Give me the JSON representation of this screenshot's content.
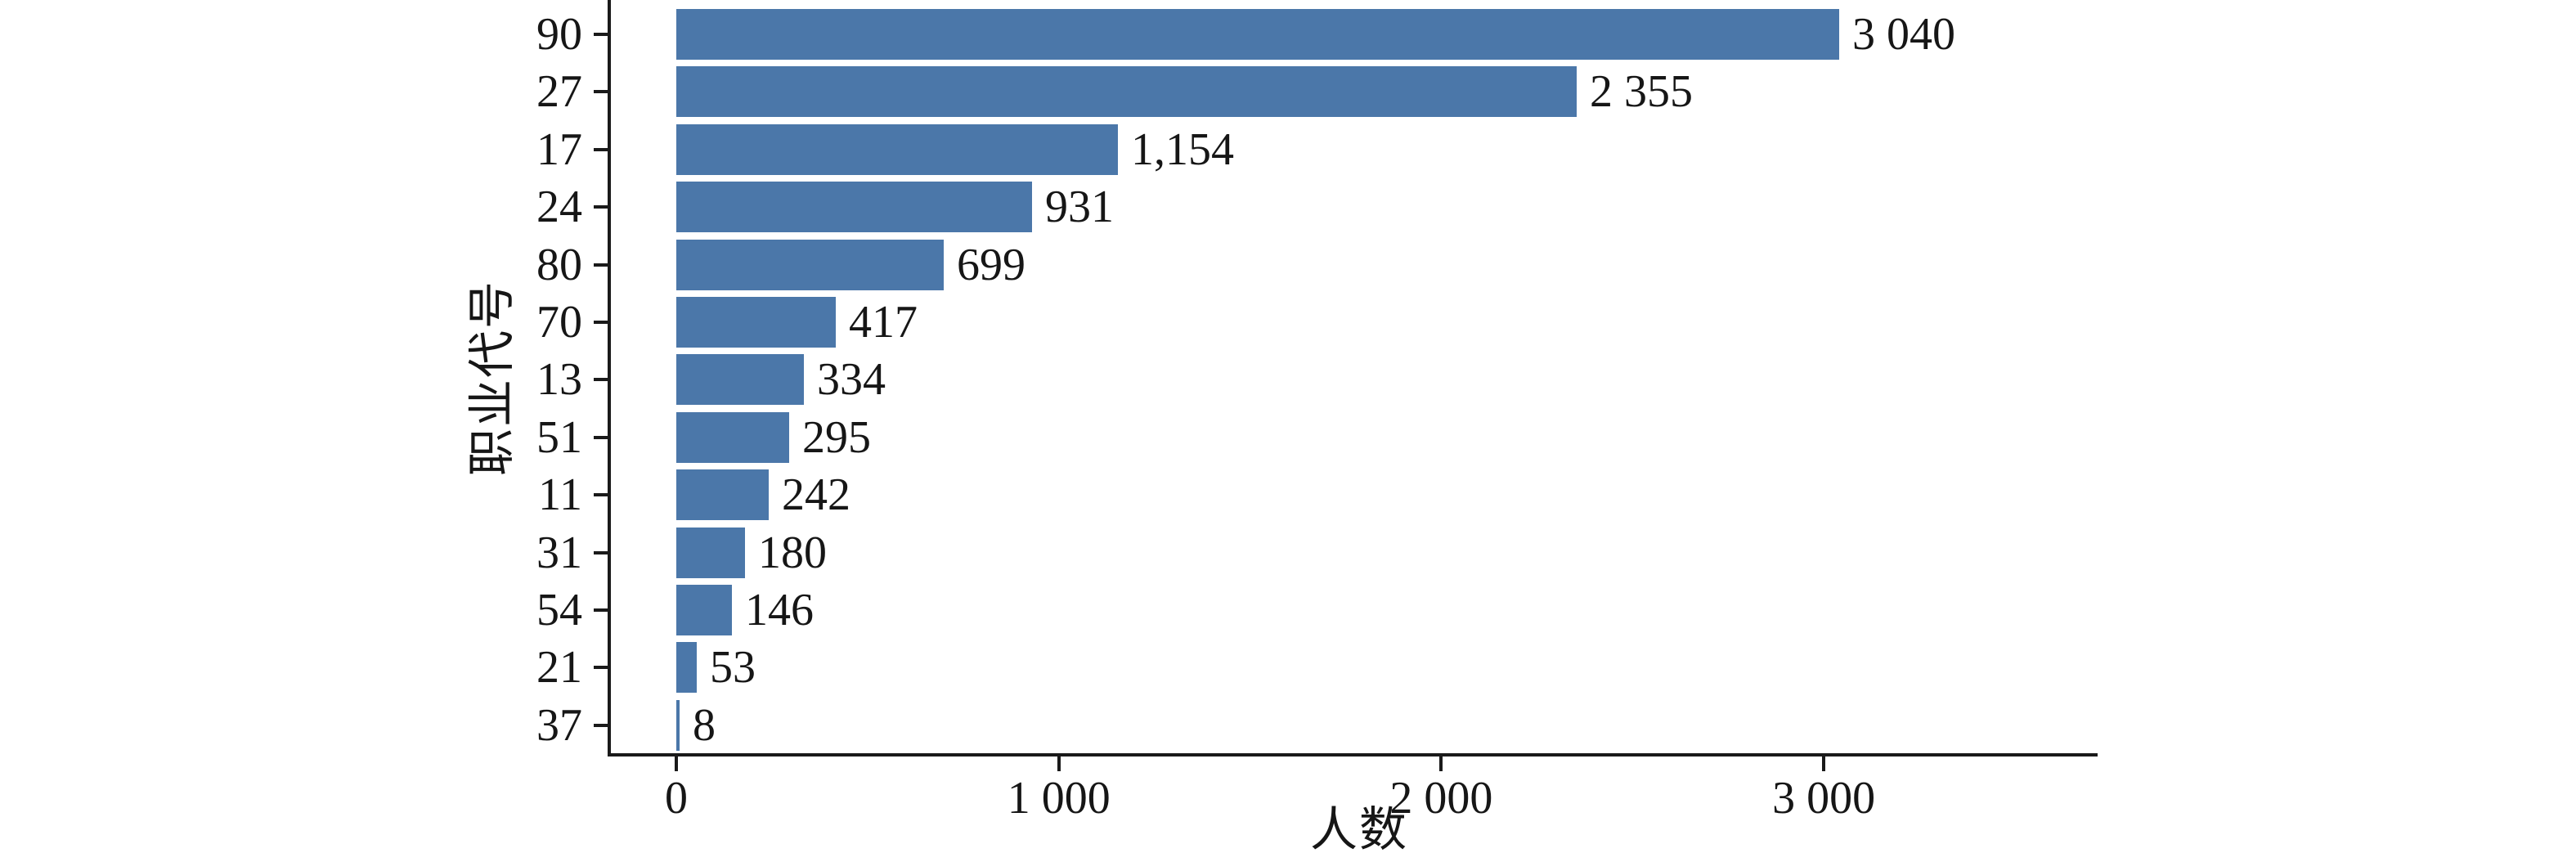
{
  "chart_data": {
    "type": "bar",
    "orientation": "horizontal",
    "title": "",
    "xlabel": "人数",
    "ylabel": "职业代号",
    "categories": [
      "90",
      "27",
      "17",
      "24",
      "80",
      "70",
      "13",
      "51",
      "11",
      "31",
      "54",
      "21",
      "37"
    ],
    "values": [
      3040,
      2355,
      1154,
      931,
      699,
      417,
      334,
      295,
      242,
      180,
      146,
      53,
      8
    ],
    "value_labels": [
      "3 040",
      "2 355",
      "1,154",
      "931",
      "699",
      "417",
      "334",
      "295",
      "242",
      "180",
      "146",
      "53",
      "8"
    ],
    "x_ticks": [
      {
        "value": 0,
        "label": "0"
      },
      {
        "value": 1000,
        "label": "1 000"
      },
      {
        "value": 2000,
        "label": "2 000"
      },
      {
        "value": 3000,
        "label": "3 000"
      }
    ],
    "xlim": [
      -180,
      3712
    ],
    "grid": false,
    "legend": null,
    "bar_color": "#4b77a9",
    "axis_color": "#1a1a1a",
    "text_color": "#161616",
    "background_color": "#ffffff"
  }
}
